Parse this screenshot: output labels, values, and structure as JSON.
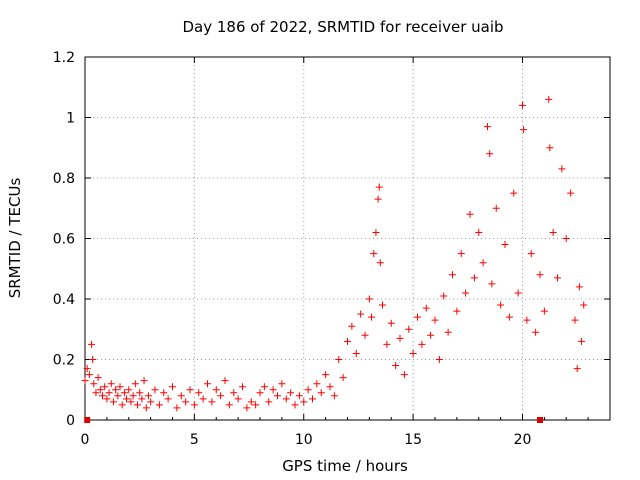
{
  "chart_data": {
    "type": "scatter",
    "title": "Day 186 of 2022, SRMTID for receiver uaib",
    "xlabel": "GPS time / hours",
    "ylabel": "SRMTID / TECUs",
    "xlim": [
      0,
      24
    ],
    "ylim": [
      0,
      1.2
    ],
    "x_ticks": [
      0,
      5,
      10,
      15,
      20
    ],
    "x_tick_labels": [
      "0",
      "5",
      "10",
      "15",
      "20"
    ],
    "y_ticks": [
      0,
      0.2,
      0.4,
      0.6,
      0.8,
      1.0,
      1.2
    ],
    "y_tick_labels": [
      "0",
      "0.2",
      "0.4",
      "0.6",
      "0.8",
      "1",
      "1.2"
    ],
    "grid": true,
    "series": [
      {
        "name": "SRMTID",
        "color": "#ff0000",
        "marker": "plus",
        "points": [
          [
            0.0,
            0.13
          ],
          [
            0.1,
            0.17
          ],
          [
            0.2,
            0.15
          ],
          [
            0.3,
            0.25
          ],
          [
            0.35,
            0.2
          ],
          [
            0.4,
            0.12
          ],
          [
            0.5,
            0.09
          ],
          [
            0.6,
            0.14
          ],
          [
            0.7,
            0.1
          ],
          [
            0.8,
            0.08
          ],
          [
            0.9,
            0.11
          ],
          [
            1.0,
            0.07
          ],
          [
            1.1,
            0.09
          ],
          [
            1.2,
            0.12
          ],
          [
            1.3,
            0.06
          ],
          [
            1.4,
            0.1
          ],
          [
            1.5,
            0.08
          ],
          [
            1.6,
            0.11
          ],
          [
            1.7,
            0.05
          ],
          [
            1.8,
            0.09
          ],
          [
            1.9,
            0.07
          ],
          [
            2.0,
            0.1
          ],
          [
            2.1,
            0.06
          ],
          [
            2.2,
            0.08
          ],
          [
            2.3,
            0.12
          ],
          [
            2.4,
            0.05
          ],
          [
            2.5,
            0.09
          ],
          [
            2.6,
            0.07
          ],
          [
            2.7,
            0.13
          ],
          [
            2.8,
            0.04
          ],
          [
            2.9,
            0.08
          ],
          [
            3.0,
            0.06
          ],
          [
            3.2,
            0.1
          ],
          [
            3.4,
            0.05
          ],
          [
            3.6,
            0.09
          ],
          [
            3.8,
            0.07
          ],
          [
            4.0,
            0.11
          ],
          [
            4.2,
            0.04
          ],
          [
            4.4,
            0.08
          ],
          [
            4.6,
            0.06
          ],
          [
            4.8,
            0.1
          ],
          [
            5.0,
            0.05
          ],
          [
            5.2,
            0.09
          ],
          [
            5.4,
            0.07
          ],
          [
            5.6,
            0.12
          ],
          [
            5.8,
            0.06
          ],
          [
            6.0,
            0.1
          ],
          [
            6.2,
            0.08
          ],
          [
            6.4,
            0.13
          ],
          [
            6.6,
            0.05
          ],
          [
            6.8,
            0.09
          ],
          [
            7.0,
            0.07
          ],
          [
            7.2,
            0.11
          ],
          [
            7.4,
            0.04
          ],
          [
            7.6,
            0.06
          ],
          [
            7.8,
            0.05
          ],
          [
            8.0,
            0.09
          ],
          [
            8.2,
            0.11
          ],
          [
            8.4,
            0.06
          ],
          [
            8.6,
            0.1
          ],
          [
            8.8,
            0.08
          ],
          [
            9.0,
            0.12
          ],
          [
            9.2,
            0.07
          ],
          [
            9.4,
            0.09
          ],
          [
            9.6,
            0.05
          ],
          [
            9.8,
            0.08
          ],
          [
            10.0,
            0.06
          ],
          [
            10.2,
            0.1
          ],
          [
            10.4,
            0.07
          ],
          [
            10.6,
            0.12
          ],
          [
            10.8,
            0.09
          ],
          [
            11.0,
            0.15
          ],
          [
            11.2,
            0.11
          ],
          [
            11.4,
            0.08
          ],
          [
            11.6,
            0.2
          ],
          [
            11.8,
            0.14
          ],
          [
            12.0,
            0.26
          ],
          [
            12.2,
            0.31
          ],
          [
            12.4,
            0.22
          ],
          [
            12.6,
            0.35
          ],
          [
            12.8,
            0.28
          ],
          [
            13.0,
            0.4
          ],
          [
            13.1,
            0.34
          ],
          [
            13.2,
            0.55
          ],
          [
            13.3,
            0.62
          ],
          [
            13.4,
            0.73
          ],
          [
            13.45,
            0.77
          ],
          [
            13.5,
            0.52
          ],
          [
            13.6,
            0.38
          ],
          [
            13.8,
            0.25
          ],
          [
            14.0,
            0.32
          ],
          [
            14.2,
            0.18
          ],
          [
            14.4,
            0.27
          ],
          [
            14.6,
            0.15
          ],
          [
            14.8,
            0.3
          ],
          [
            15.0,
            0.22
          ],
          [
            15.2,
            0.34
          ],
          [
            15.4,
            0.25
          ],
          [
            15.6,
            0.37
          ],
          [
            15.8,
            0.28
          ],
          [
            16.0,
            0.33
          ],
          [
            16.2,
            0.2
          ],
          [
            16.4,
            0.41
          ],
          [
            16.6,
            0.29
          ],
          [
            16.8,
            0.48
          ],
          [
            17.0,
            0.36
          ],
          [
            17.2,
            0.55
          ],
          [
            17.4,
            0.42
          ],
          [
            17.6,
            0.68
          ],
          [
            17.8,
            0.47
          ],
          [
            18.0,
            0.62
          ],
          [
            18.2,
            0.52
          ],
          [
            18.4,
            0.97
          ],
          [
            18.5,
            0.88
          ],
          [
            18.6,
            0.45
          ],
          [
            18.8,
            0.7
          ],
          [
            19.0,
            0.38
          ],
          [
            19.2,
            0.58
          ],
          [
            19.4,
            0.34
          ],
          [
            19.6,
            0.75
          ],
          [
            19.8,
            0.42
          ],
          [
            20.0,
            1.04
          ],
          [
            20.05,
            0.96
          ],
          [
            20.2,
            0.33
          ],
          [
            20.4,
            0.55
          ],
          [
            20.6,
            0.29
          ],
          [
            20.8,
            0.48
          ],
          [
            21.0,
            0.36
          ],
          [
            21.2,
            1.06
          ],
          [
            21.25,
            0.9
          ],
          [
            21.4,
            0.62
          ],
          [
            21.6,
            0.47
          ],
          [
            21.8,
            0.83
          ],
          [
            22.0,
            0.6
          ],
          [
            22.2,
            0.75
          ],
          [
            22.4,
            0.33
          ],
          [
            22.5,
            0.17
          ],
          [
            22.6,
            0.44
          ],
          [
            22.7,
            0.26
          ],
          [
            22.8,
            0.38
          ]
        ]
      }
    ],
    "baseline_markers": [
      0.1,
      20.8
    ]
  }
}
